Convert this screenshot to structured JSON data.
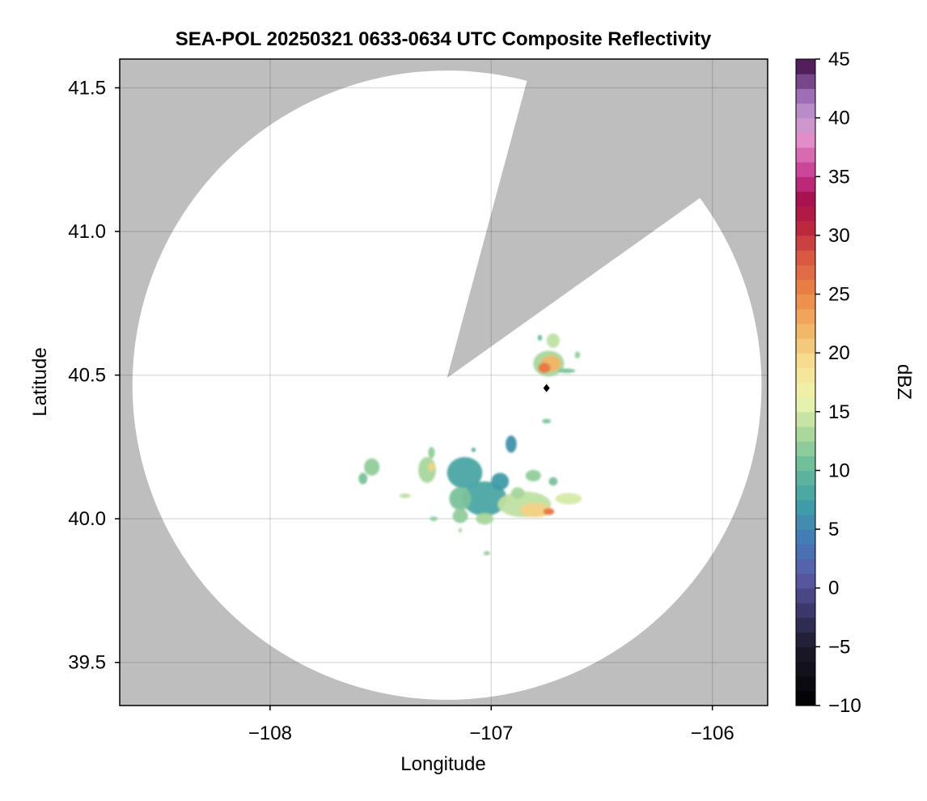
{
  "chart_data": {
    "type": "heatmap",
    "title": "SEA-POL 20250321 0633-0634 UTC Composite Reflectivity",
    "xlabel": "Longitude",
    "ylabel": "Latitude",
    "xlim": [
      -108.68,
      -105.75
    ],
    "ylim": [
      39.35,
      41.6
    ],
    "x_ticks": [
      -108,
      -107,
      -106
    ],
    "x_tick_labels": [
      "−108",
      "−107",
      "−106"
    ],
    "y_ticks": [
      39.5,
      40.0,
      40.5,
      41.0,
      41.5
    ],
    "y_tick_labels": [
      "39.5",
      "40.0",
      "40.5",
      "41.0",
      "41.5"
    ],
    "grid": true,
    "background_color": "#bebebe",
    "coverage_color": "#ffffff",
    "radar": {
      "center": [
        -107.2,
        40.49
      ],
      "range_edge_lat_north": 41.56,
      "range_edge_lat_south": 39.37,
      "blocked_sector_tips": [
        [
          -106.84,
          41.52
        ],
        [
          -106.05,
          41.12
        ]
      ]
    },
    "site_marker": {
      "lon": -106.75,
      "lat": 40.455,
      "color": "#000000",
      "shape": "diamond"
    },
    "colorbar": {
      "label": "dBZ",
      "min": -10,
      "max": 45,
      "step": 1.25,
      "ticks": [
        -10,
        -5,
        0,
        5,
        10,
        15,
        20,
        25,
        30,
        35,
        40,
        45
      ],
      "tick_labels": [
        "−10",
        "−5",
        "0",
        "5",
        "10",
        "15",
        "20",
        "25",
        "30",
        "35",
        "40",
        "45"
      ],
      "stops": [
        {
          "v": -10,
          "c": "#000000"
        },
        {
          "v": -5,
          "c": "#1c1a2b"
        },
        {
          "v": -2,
          "c": "#3a3768"
        },
        {
          "v": 1,
          "c": "#5a5aa6"
        },
        {
          "v": 4,
          "c": "#4479b8"
        },
        {
          "v": 7,
          "c": "#3f9ca8"
        },
        {
          "v": 10,
          "c": "#63b89b"
        },
        {
          "v": 13,
          "c": "#a8d69c"
        },
        {
          "v": 16,
          "c": "#ecf5ae"
        },
        {
          "v": 19,
          "c": "#f7e195"
        },
        {
          "v": 22,
          "c": "#f3b568"
        },
        {
          "v": 25,
          "c": "#ec8747"
        },
        {
          "v": 28,
          "c": "#db5a42"
        },
        {
          "v": 31,
          "c": "#b8223f"
        },
        {
          "v": 33,
          "c": "#a7104c"
        },
        {
          "v": 35,
          "c": "#c4338c"
        },
        {
          "v": 38,
          "c": "#e48cc6"
        },
        {
          "v": 40,
          "c": "#c69bd1"
        },
        {
          "v": 42,
          "c": "#9a6ab4"
        },
        {
          "v": 45,
          "c": "#3f0b45"
        }
      ]
    },
    "echo_cells": [
      {
        "lon": -106.74,
        "lat": 40.54,
        "rlon": 0.07,
        "rlat": 0.045,
        "dbz": 13
      },
      {
        "lon": -106.73,
        "lat": 40.54,
        "rlon": 0.045,
        "rlat": 0.028,
        "dbz": 22
      },
      {
        "lon": -106.76,
        "lat": 40.525,
        "rlon": 0.028,
        "rlat": 0.018,
        "dbz": 26
      },
      {
        "lon": -106.66,
        "lat": 40.515,
        "rlon": 0.04,
        "rlat": 0.008,
        "dbz": 11
      },
      {
        "lon": -106.72,
        "lat": 40.62,
        "rlon": 0.03,
        "rlat": 0.025,
        "dbz": 14
      },
      {
        "lon": -106.61,
        "lat": 40.57,
        "rlon": 0.012,
        "rlat": 0.012,
        "dbz": 12
      },
      {
        "lon": -106.78,
        "lat": 40.63,
        "rlon": 0.01,
        "rlat": 0.01,
        "dbz": 10
      },
      {
        "lon": -106.75,
        "lat": 40.34,
        "rlon": 0.02,
        "rlat": 0.008,
        "dbz": 11
      },
      {
        "lon": -106.91,
        "lat": 40.26,
        "rlon": 0.025,
        "rlat": 0.03,
        "dbz": 6
      },
      {
        "lon": -107.12,
        "lat": 40.16,
        "rlon": 0.08,
        "rlat": 0.055,
        "dbz": 8
      },
      {
        "lon": -107.03,
        "lat": 40.07,
        "rlon": 0.1,
        "rlat": 0.06,
        "dbz": 8
      },
      {
        "lon": -107.14,
        "lat": 40.07,
        "rlon": 0.05,
        "rlat": 0.04,
        "dbz": 11
      },
      {
        "lon": -106.96,
        "lat": 40.13,
        "rlon": 0.04,
        "rlat": 0.03,
        "dbz": 7
      },
      {
        "lon": -106.85,
        "lat": 40.05,
        "rlon": 0.12,
        "rlat": 0.045,
        "dbz": 14
      },
      {
        "lon": -106.8,
        "lat": 40.03,
        "rlon": 0.07,
        "rlat": 0.025,
        "dbz": 20
      },
      {
        "lon": -106.74,
        "lat": 40.025,
        "rlon": 0.025,
        "rlat": 0.012,
        "dbz": 26
      },
      {
        "lon": -106.65,
        "lat": 40.07,
        "rlon": 0.06,
        "rlat": 0.02,
        "dbz": 15
      },
      {
        "lon": -107.14,
        "lat": 40.01,
        "rlon": 0.035,
        "rlat": 0.025,
        "dbz": 12
      },
      {
        "lon": -107.03,
        "lat": 40.0,
        "rlon": 0.04,
        "rlat": 0.02,
        "dbz": 13
      },
      {
        "lon": -106.88,
        "lat": 40.09,
        "rlon": 0.03,
        "rlat": 0.02,
        "dbz": 13
      },
      {
        "lon": -106.81,
        "lat": 40.15,
        "rlon": 0.035,
        "rlat": 0.02,
        "dbz": 12
      },
      {
        "lon": -106.72,
        "lat": 40.13,
        "rlon": 0.02,
        "rlat": 0.015,
        "dbz": 11
      },
      {
        "lon": -107.29,
        "lat": 40.17,
        "rlon": 0.04,
        "rlat": 0.045,
        "dbz": 13
      },
      {
        "lon": -107.27,
        "lat": 40.18,
        "rlon": 0.015,
        "rlat": 0.015,
        "dbz": 20
      },
      {
        "lon": -107.27,
        "lat": 40.23,
        "rlon": 0.015,
        "rlat": 0.02,
        "dbz": 12
      },
      {
        "lon": -107.54,
        "lat": 40.18,
        "rlon": 0.035,
        "rlat": 0.03,
        "dbz": 12
      },
      {
        "lon": -107.58,
        "lat": 40.14,
        "rlon": 0.02,
        "rlat": 0.02,
        "dbz": 11
      },
      {
        "lon": -107.39,
        "lat": 40.08,
        "rlon": 0.025,
        "rlat": 0.008,
        "dbz": 14
      },
      {
        "lon": -107.26,
        "lat": 40.0,
        "rlon": 0.018,
        "rlat": 0.008,
        "dbz": 12
      },
      {
        "lon": -107.14,
        "lat": 39.96,
        "rlon": 0.008,
        "rlat": 0.008,
        "dbz": 13
      },
      {
        "lon": -107.02,
        "lat": 39.88,
        "rlon": 0.015,
        "rlat": 0.007,
        "dbz": 12
      },
      {
        "lon": -107.08,
        "lat": 40.24,
        "rlon": 0.01,
        "rlat": 0.008,
        "dbz": 9
      }
    ]
  }
}
